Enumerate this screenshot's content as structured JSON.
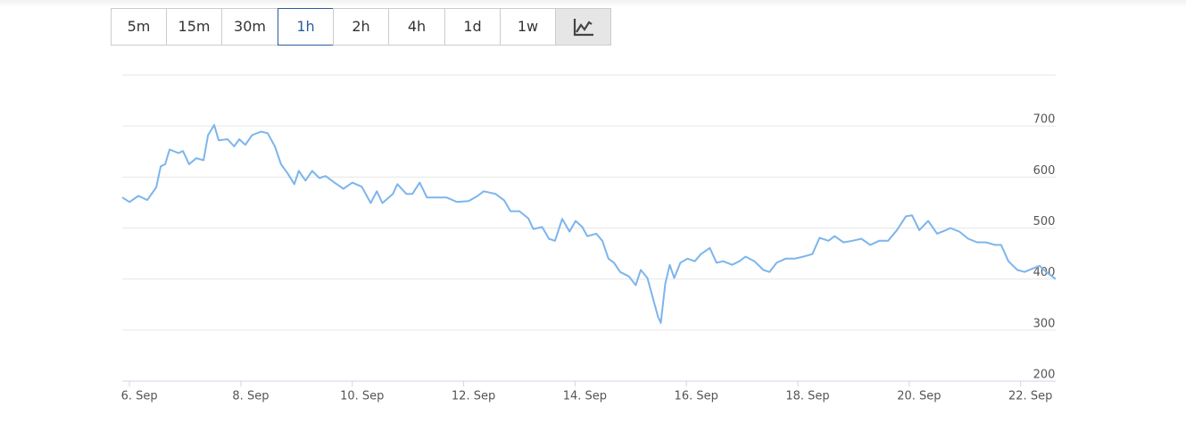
{
  "toolbar": {
    "buttons": [
      "5m",
      "15m",
      "30m",
      "1h",
      "2h",
      "4h",
      "1d",
      "1w"
    ],
    "active": 3
  },
  "chart_data": {
    "type": "line",
    "x": [
      5.87,
      6.0,
      6.16,
      6.32,
      6.48,
      6.56,
      6.64,
      6.72,
      6.88,
      6.96,
      7.07,
      7.2,
      7.33,
      7.41,
      7.52,
      7.6,
      7.76,
      7.88,
      7.97,
      8.08,
      8.2,
      8.36,
      8.48,
      8.61,
      8.72,
      8.84,
      8.96,
      9.04,
      9.16,
      9.28,
      9.41,
      9.52,
      9.68,
      9.84,
      10.0,
      10.17,
      10.33,
      10.44,
      10.54,
      10.73,
      10.81,
      10.97,
      11.08,
      11.21,
      11.34,
      11.53,
      11.69,
      11.88,
      12.09,
      12.25,
      12.36,
      12.57,
      12.73,
      12.84,
      13.0,
      13.16,
      13.25,
      13.41,
      13.53,
      13.64,
      13.77,
      13.9,
      14.01,
      14.13,
      14.22,
      14.38,
      14.49,
      14.6,
      14.7,
      14.81,
      14.97,
      15.09,
      15.18,
      15.3,
      15.38,
      15.49,
      15.54,
      15.62,
      15.7,
      15.78,
      15.89,
      16.02,
      16.15,
      16.26,
      16.42,
      16.54,
      16.66,
      16.82,
      16.95,
      17.06,
      17.22,
      17.38,
      17.49,
      17.62,
      17.78,
      17.94,
      18.1,
      18.26,
      18.39,
      18.55,
      18.66,
      18.82,
      18.98,
      19.14,
      19.3,
      19.46,
      19.62,
      19.78,
      19.94,
      20.05,
      20.18,
      20.34,
      20.5,
      20.66,
      20.74,
      20.9,
      21.06,
      21.22,
      21.38,
      21.54,
      21.65,
      21.78,
      21.94,
      22.07,
      22.18,
      22.34,
      22.46,
      22.63
    ],
    "series": [
      {
        "color": "#7cb5ec",
        "values": [
          560,
          551,
          563,
          555,
          580,
          621,
          625,
          654,
          647,
          651,
          625,
          637,
          633,
          682,
          702,
          672,
          674,
          660,
          674,
          663,
          682,
          689,
          686,
          660,
          625,
          607,
          586,
          612,
          593,
          612,
          598,
          602,
          589,
          577,
          589,
          581,
          549,
          572,
          549,
          567,
          586,
          567,
          567,
          589,
          560,
          560,
          560,
          551,
          553,
          563,
          572,
          567,
          554,
          533,
          533,
          519,
          498,
          502,
          479,
          475,
          518,
          493,
          514,
          502,
          484,
          489,
          475,
          440,
          432,
          414,
          405,
          388,
          418,
          402,
          370,
          326,
          314,
          391,
          428,
          402,
          432,
          440,
          435,
          449,
          461,
          432,
          435,
          428,
          435,
          444,
          435,
          418,
          414,
          432,
          440,
          440,
          444,
          449,
          481,
          475,
          484,
          472,
          475,
          479,
          467,
          475,
          475,
          496,
          523,
          525,
          496,
          514,
          489,
          496,
          500,
          493,
          479,
          472,
          472,
          467,
          467,
          435,
          418,
          414,
          419,
          426,
          414,
          400
        ]
      }
    ],
    "xlim": [
      5.87,
      22.63
    ],
    "xticks": [
      {
        "value": 6,
        "label": "6. Sep"
      },
      {
        "value": 8,
        "label": "8. Sep"
      },
      {
        "value": 10,
        "label": "10. Sep"
      },
      {
        "value": 12,
        "label": "12. Sep"
      },
      {
        "value": 14,
        "label": "14. Sep"
      },
      {
        "value": 16,
        "label": "16. Sep"
      },
      {
        "value": 18,
        "label": "18. Sep"
      },
      {
        "value": 20,
        "label": "20. Sep"
      },
      {
        "value": 22,
        "label": "22. Sep"
      }
    ],
    "ylim": [
      200,
      800
    ],
    "yticks": [
      200,
      300,
      400,
      500,
      600,
      700
    ],
    "grid": true
  }
}
